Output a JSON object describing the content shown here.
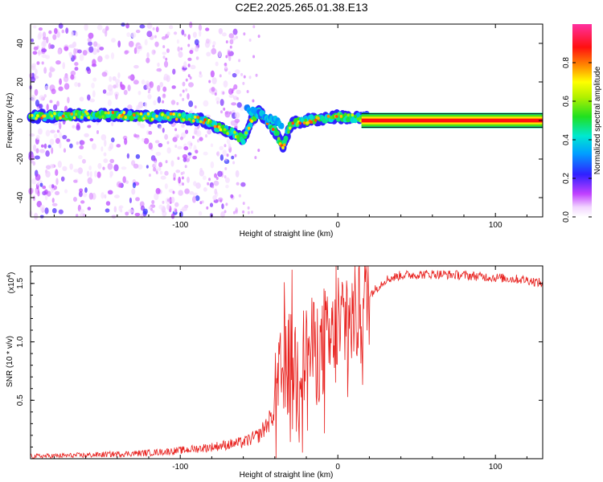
{
  "title": "C2E2.2025.265.01.38.E13",
  "colors": {
    "snr_line": "#e8211e",
    "axis": "#000000",
    "background": "#ffffff"
  },
  "chart_data": [
    {
      "type": "heatmap",
      "title": "C2E2.2025.265.01.38.E13",
      "xlabel": "Height of straight line (km)",
      "ylabel": "Frequency (Hz)",
      "xlim": [
        -195,
        130
      ],
      "ylim": [
        -50,
        50
      ],
      "xticks": [
        -100,
        0,
        100
      ],
      "xtick_labels": [
        "-100",
        "0",
        "100"
      ],
      "yticks": [
        -40,
        -20,
        0,
        20,
        40
      ],
      "ytick_labels": [
        "-40",
        "-20",
        "0",
        "20",
        "40"
      ],
      "colorbar": {
        "label": "Normalized spectral amplitude",
        "range": [
          0,
          1
        ],
        "ticks": [
          0,
          0.2,
          0.4,
          0.6,
          0.8
        ],
        "tick_labels": [
          "0.0",
          "0.2",
          "0.4",
          "0.6",
          "0.8"
        ]
      },
      "signal_track": [
        {
          "x": -195,
          "y": 2
        },
        {
          "x": -160,
          "y": 3
        },
        {
          "x": -140,
          "y": 3
        },
        {
          "x": -120,
          "y": 2
        },
        {
          "x": -100,
          "y": 2
        },
        {
          "x": -85,
          "y": 0
        },
        {
          "x": -75,
          "y": -4
        },
        {
          "x": -65,
          "y": -7
        },
        {
          "x": -60,
          "y": -10
        },
        {
          "x": -55,
          "y": 0
        },
        {
          "x": -50,
          "y": 5
        },
        {
          "x": -45,
          "y": 0
        },
        {
          "x": -40,
          "y": -5
        },
        {
          "x": -35,
          "y": -14
        },
        {
          "x": -30,
          "y": -2
        },
        {
          "x": -20,
          "y": 0
        },
        {
          "x": 0,
          "y": 2
        },
        {
          "x": 20,
          "y": 1
        },
        {
          "x": 130,
          "y": 0
        }
      ],
      "noise_region_xlim": [
        -195,
        -120
      ]
    },
    {
      "type": "line",
      "xlabel": "Height of straight line (km)",
      "ylabel": "SNR (10 * v/v)",
      "scale_label": "(x10",
      "scale_exponent": "4",
      "scale_suffix": ")",
      "xlim": [
        -195,
        130
      ],
      "ylim": [
        0,
        1.65
      ],
      "xticks": [
        -100,
        0,
        100
      ],
      "xtick_labels": [
        "-100",
        "0",
        "100"
      ],
      "yticks": [
        0.5,
        1.0,
        1.5
      ],
      "ytick_labels": [
        "0.5",
        "1.0",
        "1.5"
      ],
      "x": [
        -195,
        -160,
        -120,
        -100,
        -80,
        -60,
        -50,
        -42,
        -38,
        -35,
        -30,
        -25,
        -20,
        -15,
        -10,
        -5,
        0,
        5,
        10,
        15,
        20,
        30,
        40,
        60,
        80,
        100,
        120,
        130
      ],
      "values": [
        0.02,
        0.03,
        0.05,
        0.07,
        0.1,
        0.14,
        0.2,
        0.35,
        0.55,
        0.75,
        0.85,
        0.8,
        0.9,
        0.95,
        0.9,
        1.0,
        1.05,
        1.15,
        1.2,
        1.3,
        1.4,
        1.53,
        1.57,
        1.58,
        1.57,
        1.55,
        1.53,
        1.5
      ]
    }
  ]
}
